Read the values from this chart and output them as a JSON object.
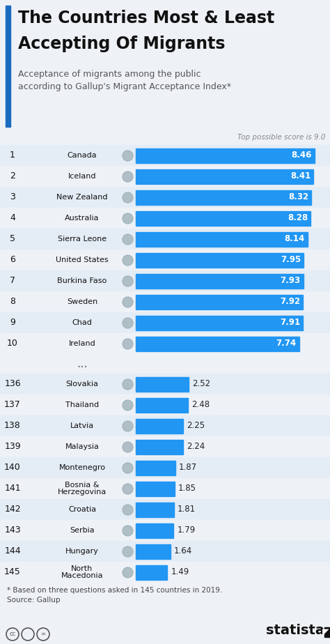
{
  "title_line1": "The Countries Most & Least",
  "title_line2": "Accepting Of Migrants",
  "subtitle_line1": "Acceptance of migrants among the public",
  "subtitle_line2": "according to Gallup's Migrant Acceptance Index*",
  "top_note": "Top possible score is 9.0",
  "top_countries": [
    {
      "rank": 1,
      "name": "Canada",
      "value": 8.46
    },
    {
      "rank": 2,
      "name": "Iceland",
      "value": 8.41
    },
    {
      "rank": 3,
      "name": "New Zealand",
      "value": 8.32
    },
    {
      "rank": 4,
      "name": "Australia",
      "value": 8.28
    },
    {
      "rank": 5,
      "name": "Sierra Leone",
      "value": 8.14
    },
    {
      "rank": 6,
      "name": "United States",
      "value": 7.95
    },
    {
      "rank": 7,
      "name": "Burkina Faso",
      "value": 7.93
    },
    {
      "rank": 8,
      "name": "Sweden",
      "value": 7.92
    },
    {
      "rank": 9,
      "name": "Chad",
      "value": 7.91
    },
    {
      "rank": 10,
      "name": "Ireland",
      "value": 7.74
    }
  ],
  "bottom_countries": [
    {
      "rank": 136,
      "name": "Slovakia",
      "value": 2.52
    },
    {
      "rank": 137,
      "name": "Thailand",
      "value": 2.48
    },
    {
      "rank": 138,
      "name": "Latvia",
      "value": 2.25
    },
    {
      "rank": 139,
      "name": "Malaysia",
      "value": 2.24
    },
    {
      "rank": 140,
      "name": "Montenegro",
      "value": 1.87
    },
    {
      "rank": 141,
      "name": "Bosnia &\nHerzegovina",
      "value": 1.85
    },
    {
      "rank": 142,
      "name": "Croatia",
      "value": 1.81
    },
    {
      "rank": 143,
      "name": "Serbia",
      "value": 1.79
    },
    {
      "rank": 144,
      "name": "Hungary",
      "value": 1.64
    },
    {
      "rank": 145,
      "name": "North\nMacedonia",
      "value": 1.49
    }
  ],
  "bar_color": "#2196F3",
  "bg_color": "#eef2f7",
  "white_bg": "#ffffff",
  "row_bg_alt": "#e4ecf5",
  "row_bg_norm": "#eef2f7",
  "title_color": "#111111",
  "subtitle_color": "#555555",
  "rank_color": "#111111",
  "country_color": "#111111",
  "note_color": "#888888",
  "footer_color": "#444444",
  "accent_color": "#1a6bbf",
  "footnote": "* Based on three questions asked in 145 countries in 2019.\nSource: Gallup",
  "max_score": 9.0,
  "figwidth": 4.74,
  "figheight": 9.24,
  "dpi": 100
}
